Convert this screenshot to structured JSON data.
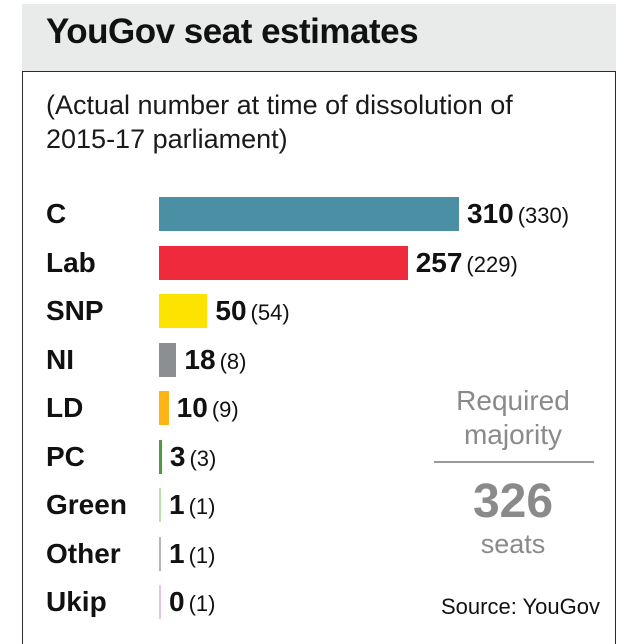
{
  "title": "YouGov seat estimates",
  "subtitle": "(Actual number at time of dissolution of 2015-17 parliament)",
  "required": {
    "label": "Required majority",
    "value": "326",
    "unit": "seats"
  },
  "source": "Source: YouGov",
  "chart_data": {
    "type": "bar",
    "orientation": "horizontal",
    "title": "YouGov seat estimates",
    "categories": [
      "C",
      "Lab",
      "SNP",
      "NI",
      "LD",
      "PC",
      "Green",
      "Other",
      "Ukip"
    ],
    "values": [
      310,
      257,
      50,
      18,
      10,
      3,
      1,
      1,
      0
    ],
    "actual": [
      "(330)",
      "(229)",
      "(54)",
      "(8)",
      "(9)",
      "(3)",
      "(1)",
      "(1)",
      "(1)"
    ],
    "colors": [
      "#4a8fa3",
      "#ee2a3c",
      "#fde300",
      "#8c8f91",
      "#fdb515",
      "#4b9a3d",
      "#b9dfa8",
      "#b5b5b5",
      "#e3c6e6"
    ],
    "xlim": [
      0,
      310
    ],
    "grid": false,
    "legend": "none"
  }
}
